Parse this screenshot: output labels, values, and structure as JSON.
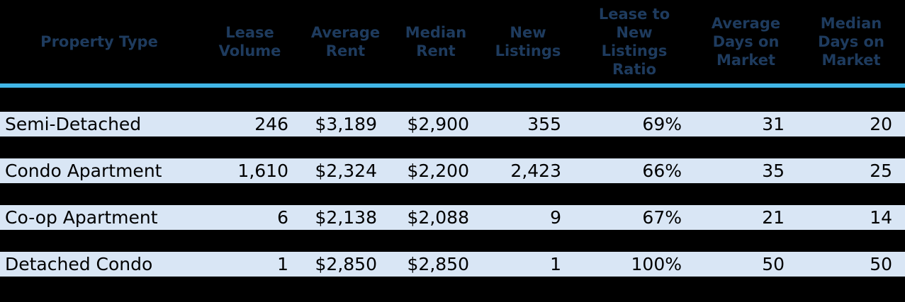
{
  "theme": {
    "background_color": "#000000",
    "header_text_color": "#1e3b5e",
    "accent_line_color": "#41b6e6",
    "row_background_color": "#d9e6f5",
    "row_text_color": "#000000"
  },
  "table": {
    "columns": [
      {
        "key": "property_type",
        "label": "Property Type"
      },
      {
        "key": "lease_volume",
        "label": "Lease\nVolume"
      },
      {
        "key": "average_rent",
        "label": "Average\nRent"
      },
      {
        "key": "median_rent",
        "label": "Median\nRent"
      },
      {
        "key": "new_listings",
        "label": "New\nListings"
      },
      {
        "key": "lease_to_new_listings_ratio",
        "label": "Lease to\nNew\nListings\nRatio"
      },
      {
        "key": "average_days_on_market",
        "label": "Average\nDays on\nMarket"
      },
      {
        "key": "median_days_on_market",
        "label": "Median\nDays on\nMarket"
      }
    ],
    "rows": [
      {
        "cells": [
          "Semi-Detached",
          "246",
          "$3,189",
          "$2,900",
          "355",
          "69%",
          "31",
          "20"
        ]
      },
      {
        "cells": [
          "Condo Apartment",
          "1,610",
          "$2,324",
          "$2,200",
          "2,423",
          "66%",
          "35",
          "25"
        ]
      },
      {
        "cells": [
          "Co-op Apartment",
          "6",
          "$2,138",
          "$2,088",
          "9",
          "67%",
          "21",
          "14"
        ]
      },
      {
        "cells": [
          "Detached Condo",
          "1",
          "$2,850",
          "$2,850",
          "1",
          "100%",
          "50",
          "50"
        ]
      }
    ]
  },
  "chart_data": {
    "type": "table",
    "title": "",
    "columns": [
      "Property Type",
      "Lease Volume",
      "Average Rent",
      "Median Rent",
      "New Listings",
      "Lease to New Listings Ratio",
      "Average Days on Market",
      "Median Days on Market"
    ],
    "rows": [
      [
        "Semi-Detached",
        246,
        3189,
        2900,
        355,
        "69%",
        31,
        20
      ],
      [
        "Condo Apartment",
        1610,
        2324,
        2200,
        2423,
        "66%",
        35,
        25
      ],
      [
        "Co-op Apartment",
        6,
        2138,
        2088,
        9,
        "67%",
        21,
        14
      ],
      [
        "Detached Condo",
        1,
        2850,
        2850,
        1,
        "100%",
        50,
        50
      ]
    ]
  }
}
